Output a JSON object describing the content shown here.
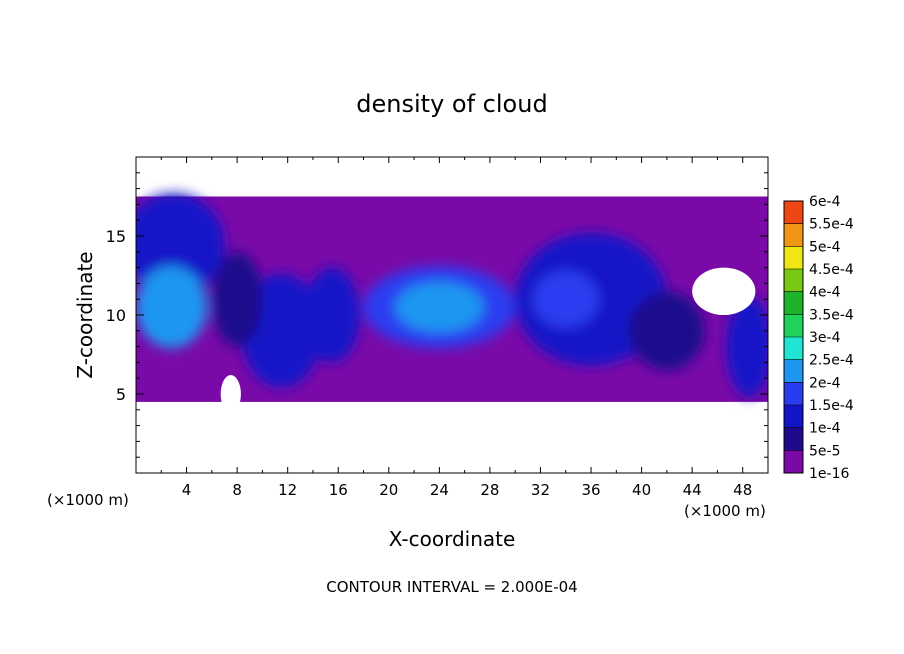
{
  "chart_data": {
    "type": "heatmap",
    "title": "density of cloud",
    "xlabel": "X-coordinate",
    "ylabel": "Z-coordinate",
    "x_unit": "(×1000 m)",
    "x_unit_right": "(×1000 m)",
    "footer": "CONTOUR INTERVAL = 2.000E-04",
    "xlim": [
      0,
      50
    ],
    "ylim": [
      0,
      20
    ],
    "x_ticks": [
      4,
      8,
      12,
      16,
      20,
      24,
      28,
      32,
      36,
      40,
      44,
      48
    ],
    "y_ticks": [
      5,
      10,
      15
    ],
    "colorbar": {
      "labels": [
        "1e-16",
        "5e-5",
        "1e-4",
        "1.5e-4",
        "2e-4",
        "2.5e-4",
        "3e-4",
        "3.5e-4",
        "4e-4",
        "4.5e-4",
        "5e-4",
        "5.5e-4",
        "6e-4"
      ],
      "colors": [
        "#7a0aa8",
        "#1e0a8c",
        "#1414c8",
        "#2a3cf0",
        "#1e96f0",
        "#1ee6d2",
        "#1ed25a",
        "#1eb42a",
        "#78c814",
        "#f0e614",
        "#f09614",
        "#f04614",
        "#f07878"
      ]
    },
    "cloud_layer": {
      "base": 4.5,
      "top": 17.5
    },
    "regions": [
      {
        "level": 2,
        "center": [
          3,
          14.5
        ],
        "radius": [
          4,
          3.2
        ]
      },
      {
        "level": 4,
        "center": [
          2.8,
          10.5
        ],
        "radius": [
          2.8,
          2.6
        ]
      },
      {
        "level": 2,
        "center": [
          11.5,
          9
        ],
        "radius": [
          3.2,
          3.6
        ]
      },
      {
        "level": 2,
        "center": [
          15.5,
          10
        ],
        "radius": [
          2.2,
          3
        ]
      },
      {
        "level": 3,
        "center": [
          24,
          10.5
        ],
        "radius": [
          6,
          2.6
        ]
      },
      {
        "level": 4,
        "center": [
          24,
          10.5
        ],
        "radius": [
          3.5,
          1.6
        ]
      },
      {
        "level": 2,
        "center": [
          36,
          11
        ],
        "radius": [
          6,
          4.2
        ]
      },
      {
        "level": 3,
        "center": [
          34,
          11
        ],
        "radius": [
          2.6,
          1.8
        ]
      },
      {
        "level": 2,
        "center": [
          48.5,
          8
        ],
        "radius": [
          1.8,
          3.2
        ]
      },
      {
        "level": 1,
        "center": [
          8,
          11
        ],
        "radius": [
          2,
          3
        ]
      },
      {
        "level": 1,
        "center": [
          42,
          9
        ],
        "radius": [
          3,
          2.5
        ]
      }
    ],
    "gaps": [
      {
        "center": [
          46.5,
          11.5
        ],
        "radius": [
          2.5,
          1.5
        ]
      },
      {
        "center": [
          7.5,
          5
        ],
        "radius": [
          0.8,
          1.2
        ]
      }
    ]
  }
}
